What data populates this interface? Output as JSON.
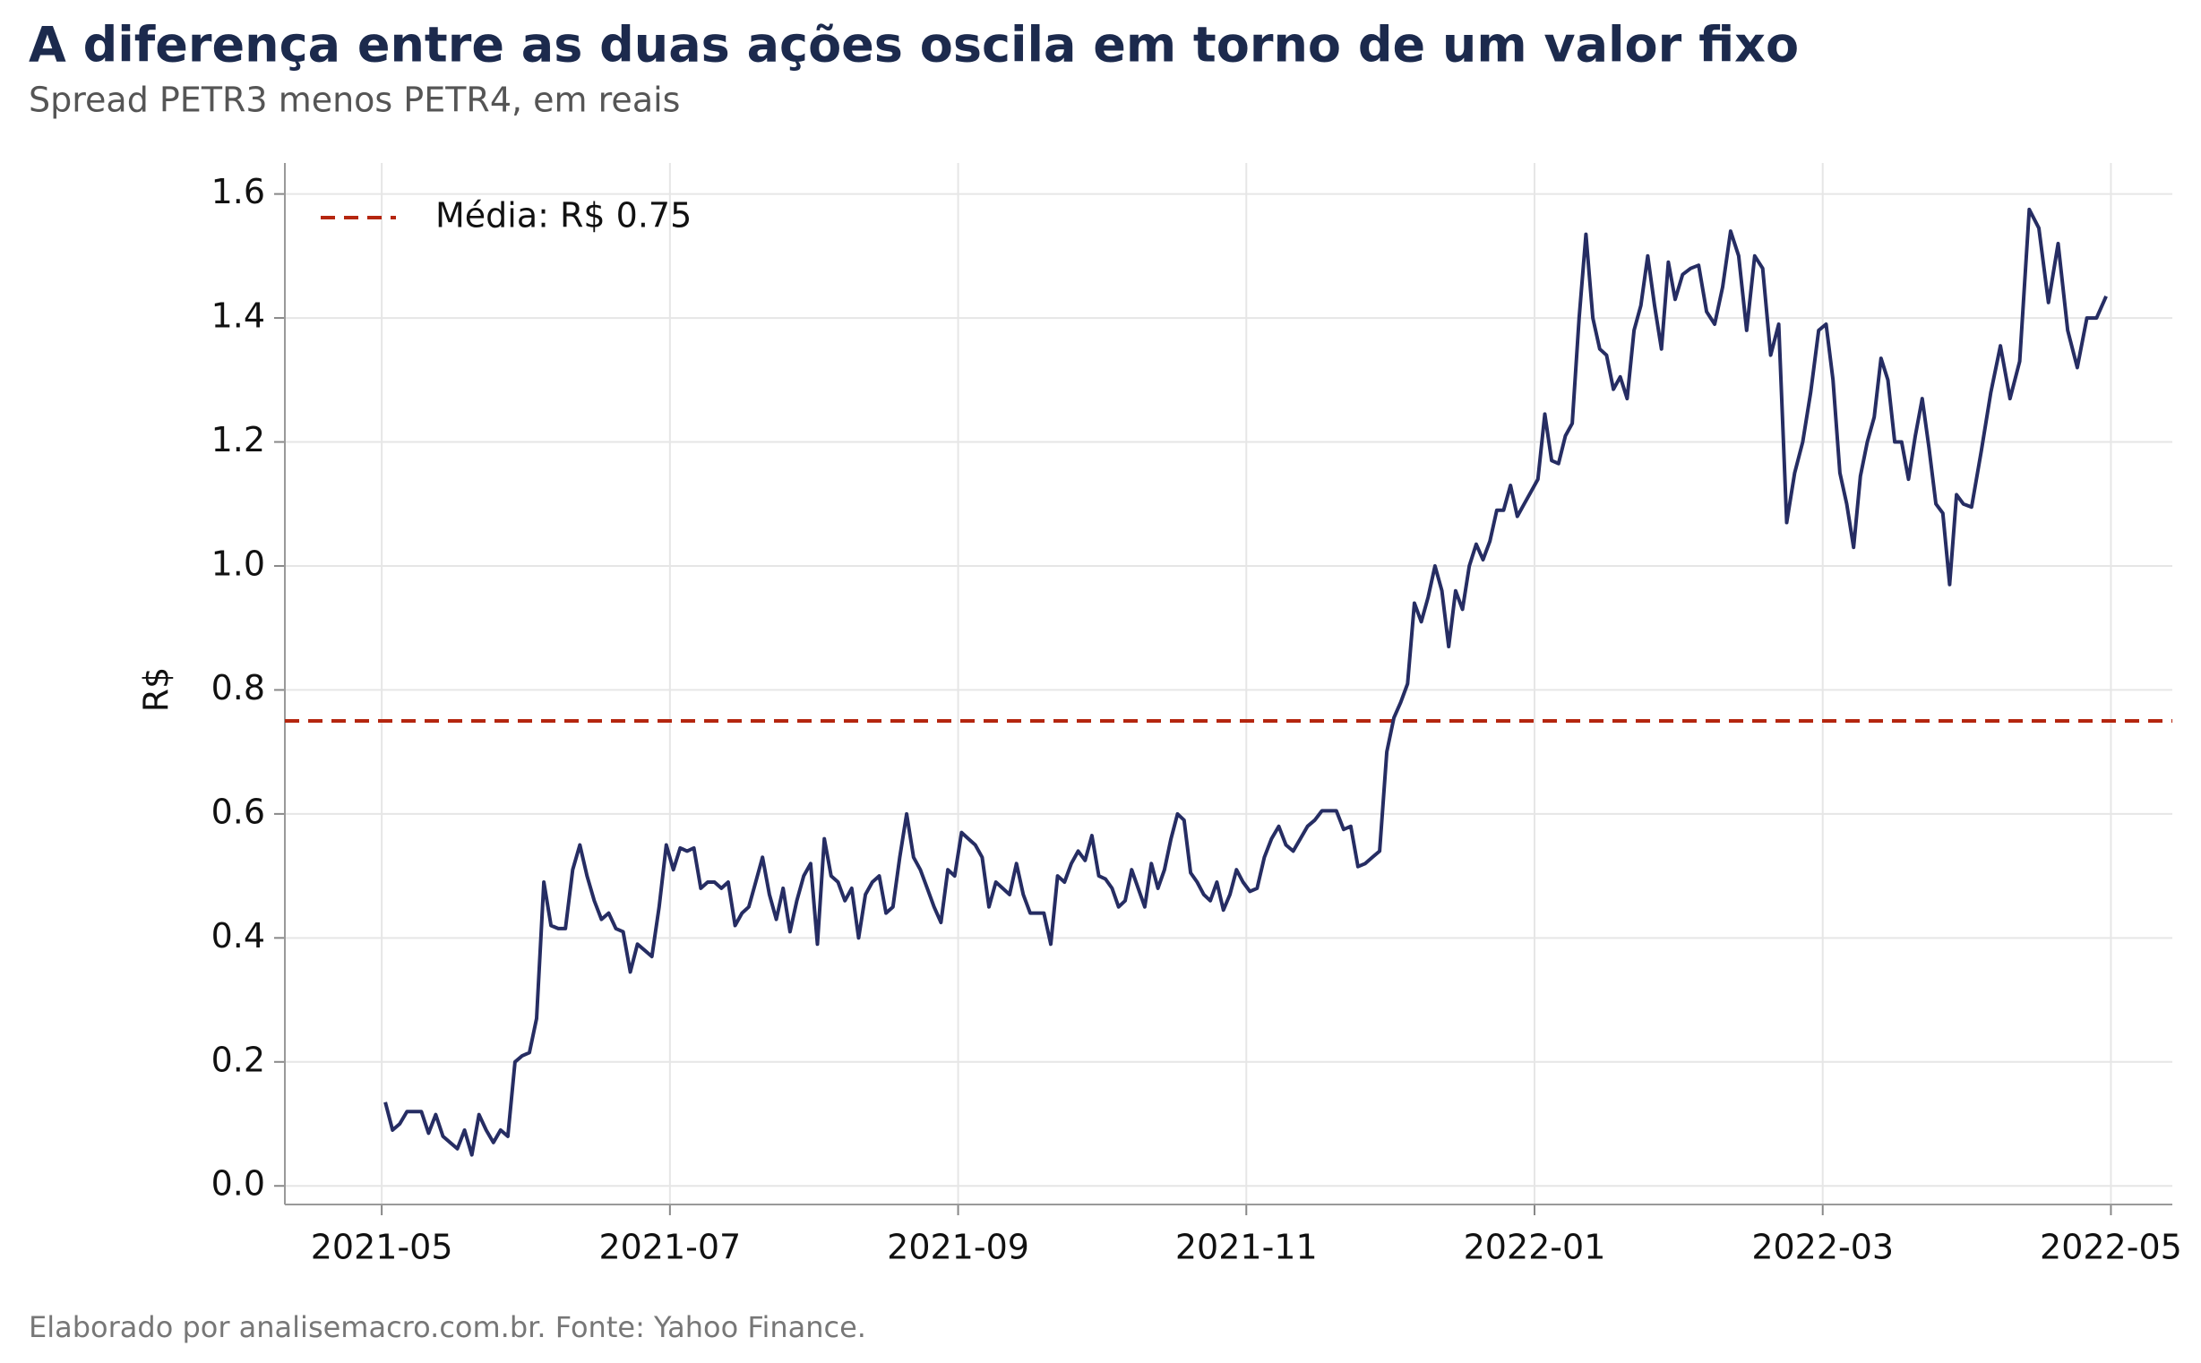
{
  "chart_data": {
    "type": "line",
    "title": "A diferença entre as duas ações oscila em torno de um valor fixo",
    "subtitle": "Spread PETR3 menos PETR4, em reais",
    "ylabel": "R$",
    "footer": "Elaborado por analisemacro.com.br. Fonte: Yahoo Finance.",
    "legend": "upper left",
    "grid": true,
    "xlim": [
      "2021-04-11",
      "2022-05-14"
    ],
    "xticks": [
      "2021-05",
      "2021-07",
      "2021-09",
      "2021-11",
      "2022-01",
      "2022-03",
      "2022-05"
    ],
    "ylim": [
      -0.03,
      1.65
    ],
    "yticks": [
      {
        "value": 0,
        "label": "0.0"
      },
      0.2,
      0.4,
      0.6,
      0.8,
      {
        "value": 1,
        "label": "1.0"
      },
      1.2,
      1.4,
      1.6
    ],
    "reference_line": {
      "name": "Média: R$ 0.75",
      "value": 0.75,
      "color": "#b5260f"
    },
    "x": [
      "2021-05",
      "2021-05",
      "2021-05",
      "2021-05",
      "2021-05",
      "2021-05",
      "2021-05",
      "2021-05",
      "2021-05",
      "2021-05",
      "2021-05",
      "2021-05",
      "2021-05",
      "2021-05",
      "2021-05",
      "2021-05",
      "2021-05",
      "2021-05",
      "2021-05",
      "2021-05",
      "2021-06",
      "2021-06",
      "2021-06",
      "2021-06",
      "2021-06",
      "2021-06",
      "2021-06",
      "2021-06",
      "2021-06",
      "2021-06",
      "2021-06",
      "2021-06",
      "2021-06",
      "2021-06",
      "2021-06",
      "2021-06",
      "2021-06",
      "2021-06",
      "2021-06",
      "2021-06",
      "2021-07",
      "2021-07",
      "2021-07",
      "2021-07",
      "2021-07",
      "2021-07",
      "2021-07",
      "2021-07",
      "2021-07",
      "2021-07",
      "2021-07",
      "2021-07",
      "2021-07",
      "2021-07",
      "2021-07",
      "2021-07",
      "2021-07",
      "2021-07",
      "2021-07",
      "2021-07",
      "2021-07",
      "2021-08",
      "2021-08",
      "2021-08",
      "2021-08",
      "2021-08",
      "2021-08",
      "2021-08",
      "2021-08",
      "2021-08",
      "2021-08",
      "2021-08",
      "2021-08",
      "2021-08",
      "2021-08",
      "2021-08",
      "2021-08",
      "2021-08",
      "2021-08",
      "2021-08",
      "2021-08",
      "2021-08",
      "2021-09",
      "2021-09",
      "2021-09",
      "2021-09",
      "2021-09",
      "2021-09",
      "2021-09",
      "2021-09",
      "2021-09",
      "2021-09",
      "2021-09",
      "2021-09",
      "2021-09",
      "2021-09",
      "2021-09",
      "2021-09",
      "2021-09",
      "2021-09",
      "2021-09",
      "2021-09",
      "2021-09",
      "2021-10",
      "2021-10",
      "2021-10",
      "2021-10",
      "2021-10",
      "2021-10",
      "2021-10",
      "2021-10",
      "2021-10",
      "2021-10",
      "2021-10",
      "2021-10",
      "2021-10",
      "2021-10",
      "2021-10",
      "2021-10",
      "2021-10",
      "2021-10",
      "2021-10",
      "2021-10",
      "2021-10",
      "2021-10",
      "2021-11",
      "2021-11",
      "2021-11",
      "2021-11",
      "2021-11",
      "2021-11",
      "2021-11",
      "2021-11",
      "2021-11",
      "2021-11",
      "2021-11",
      "2021-11",
      "2021-11",
      "2021-11",
      "2021-11",
      "2021-11",
      "2021-11",
      "2021-11",
      "2021-11",
      "2021-11",
      "2021-12",
      "2021-12",
      "2021-12",
      "2021-12",
      "2021-12",
      "2021-12",
      "2021-12",
      "2021-12",
      "2021-12",
      "2021-12",
      "2021-12",
      "2021-12",
      "2021-12",
      "2021-12",
      "2021-12",
      "2021-12",
      "2021-12",
      "2021-12",
      "2021-12",
      "2021-12",
      "2021-12",
      "2022-01",
      "2022-01",
      "2022-01",
      "2022-01",
      "2022-01",
      "2022-01",
      "2022-01",
      "2022-01",
      "2022-01",
      "2022-01",
      "2022-01",
      "2022-01",
      "2022-01",
      "2022-01",
      "2022-01",
      "2022-01",
      "2022-01",
      "2022-01",
      "2022-01",
      "2022-01",
      "2022-01",
      "2022-02",
      "2022-02",
      "2022-02",
      "2022-02",
      "2022-02",
      "2022-02",
      "2022-02",
      "2022-02",
      "2022-02",
      "2022-02",
      "2022-02",
      "2022-02",
      "2022-02",
      "2022-02",
      "2022-02",
      "2022-02",
      "2022-02",
      "2022-02",
      "2022-03",
      "2022-03",
      "2022-03",
      "2022-03",
      "2022-03",
      "2022-03",
      "2022-03",
      "2022-03",
      "2022-03",
      "2022-03",
      "2022-03",
      "2022-03",
      "2022-03",
      "2022-03",
      "2022-03",
      "2022-03",
      "2022-03",
      "2022-03",
      "2022-03",
      "2022-03",
      "2022-03",
      "2022-04",
      "2022-04",
      "2022-04",
      "2022-04",
      "2022-04",
      "2022-04",
      "2022-04",
      "2022-04",
      "2022-04",
      "2022-04",
      "2022-04",
      "2022-04",
      "2022-04",
      "2022-04",
      "2022-04"
    ],
    "series": [
      {
        "color": "#262d63",
        "values": [
          0.135,
          0.09,
          0.1,
          0.12,
          0.12,
          0.12,
          0.085,
          0.115,
          0.08,
          0.07,
          0.06,
          0.09,
          0.05,
          0.115,
          0.09,
          0.07,
          0.09,
          0.08,
          0.2,
          0.21,
          0.215,
          0.27,
          0.49,
          0.42,
          0.415,
          0.415,
          0.51,
          0.55,
          0.5,
          0.46,
          0.43,
          0.44,
          0.415,
          0.41,
          0.345,
          0.39,
          0.38,
          0.37,
          0.45,
          0.55,
          0.51,
          0.545,
          0.54,
          0.545,
          0.48,
          0.49,
          0.49,
          0.48,
          0.49,
          0.42,
          0.44,
          0.45,
          0.49,
          0.53,
          0.47,
          0.43,
          0.48,
          0.41,
          0.46,
          0.5,
          0.52,
          0.39,
          0.56,
          0.5,
          0.49,
          0.46,
          0.48,
          0.4,
          0.47,
          0.49,
          0.5,
          0.44,
          0.45,
          0.53,
          0.6,
          0.53,
          0.51,
          0.48,
          0.45,
          0.425,
          0.51,
          0.5,
          0.57,
          0.56,
          0.55,
          0.53,
          0.45,
          0.49,
          0.48,
          0.47,
          0.52,
          0.47,
          0.44,
          0.44,
          0.44,
          0.39,
          0.5,
          0.49,
          0.52,
          0.54,
          0.525,
          0.565,
          0.5,
          0.495,
          0.48,
          0.45,
          0.46,
          0.51,
          0.48,
          0.45,
          0.52,
          0.48,
          0.51,
          0.56,
          0.6,
          0.59,
          0.505,
          0.49,
          0.47,
          0.46,
          0.49,
          0.445,
          0.47,
          0.51,
          0.49,
          0.475,
          0.48,
          0.53,
          0.56,
          0.58,
          0.55,
          0.54,
          0.56,
          0.58,
          0.59,
          0.605,
          0.605,
          0.605,
          0.575,
          0.58,
          0.515,
          0.52,
          0.53,
          0.54,
          0.7,
          0.755,
          0.78,
          0.81,
          0.94,
          0.91,
          0.95,
          1.0,
          0.96,
          0.87,
          0.96,
          0.93,
          1.0,
          1.035,
          1.01,
          1.04,
          1.09,
          1.09,
          1.13,
          1.08,
          1.1,
          1.12,
          1.14,
          1.245,
          1.17,
          1.165,
          1.21,
          1.23,
          1.4,
          1.535,
          1.4,
          1.35,
          1.34,
          1.285,
          1.305,
          1.27,
          1.38,
          1.42,
          1.5,
          1.42,
          1.35,
          1.49,
          1.43,
          1.47,
          1.48,
          1.485,
          1.41,
          1.39,
          1.45,
          1.54,
          1.5,
          1.38,
          1.5,
          1.48,
          1.34,
          1.39,
          1.07,
          1.15,
          1.2,
          1.28,
          1.38,
          1.39,
          1.3,
          1.15,
          1.1,
          1.03,
          1.145,
          1.2,
          1.24,
          1.335,
          1.3,
          1.2,
          1.2,
          1.14,
          1.21,
          1.27,
          1.19,
          1.1,
          1.085,
          0.97,
          1.115,
          1.1,
          1.095,
          1.185,
          1.28,
          1.355,
          1.27,
          1.33,
          1.575,
          1.545,
          1.425,
          1.52,
          1.38,
          1.32,
          1.4,
          1.4,
          1.435
        ]
      }
    ]
  }
}
